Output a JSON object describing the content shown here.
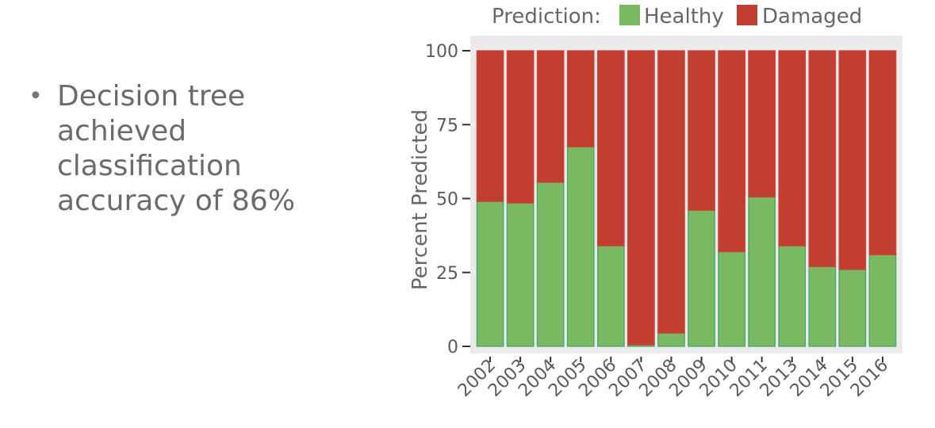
{
  "slide": {
    "bullet_text": "Decision tree achieved classification accuracy of 86%"
  },
  "chart_data": {
    "type": "bar",
    "stacked": true,
    "categories": [
      "2002",
      "2003",
      "2004",
      "2005",
      "2006",
      "2007",
      "2008",
      "2009",
      "2010",
      "2011",
      "2013",
      "2014",
      "2015",
      "2016"
    ],
    "series": [
      {
        "name": "Healthy",
        "color": "#7ab862",
        "values": [
          49,
          48.5,
          55.5,
          67.5,
          34,
          0.5,
          4.5,
          46,
          32,
          50.5,
          34,
          27,
          26,
          31
        ]
      },
      {
        "name": "Damaged",
        "color": "#c13e30",
        "values": [
          51,
          51.5,
          44.5,
          32.5,
          66,
          99.5,
          95.5,
          54,
          68,
          49.5,
          66,
          73,
          74,
          69
        ]
      }
    ],
    "legend_title": "Prediction:",
    "legend_placement": "top",
    "xlabel": "",
    "ylabel": "Percent Predicted",
    "ylim": [
      0,
      100
    ],
    "yticks": [
      0,
      25,
      50,
      75,
      100
    ],
    "panel_background": "#ebebeb",
    "grid": false
  }
}
